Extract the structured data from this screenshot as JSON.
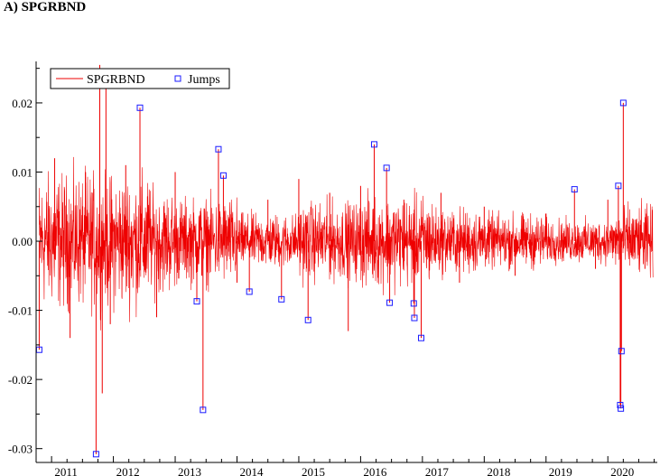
{
  "panel_label": "A) SPGRBND",
  "chart_data": {
    "type": "line",
    "title": "",
    "xlabel": "",
    "ylabel": "",
    "xlim": [
      2010.75,
      2020.8
    ],
    "ylim": [
      -0.032,
      0.026
    ],
    "x_ticks": [
      2011,
      2012,
      2013,
      2014,
      2015,
      2016,
      2017,
      2018,
      2019,
      2020
    ],
    "x_tick_labels": [
      "2011",
      "2012",
      "2013",
      "2014",
      "2015",
      "2016",
      "2017",
      "2018",
      "2019",
      "2020"
    ],
    "y_ticks": [
      -0.03,
      -0.02,
      -0.01,
      0.0,
      0.01,
      0.02
    ],
    "y_tick_labels": [
      "-0.03",
      "-0.02",
      "-0.01",
      "0.00",
      "0.01",
      "0.02"
    ],
    "grid": false,
    "legend": {
      "position": "top-left",
      "entries": [
        "SPGRBND",
        "Jumps"
      ]
    },
    "colors": {
      "series": "#ee0000",
      "jumps": "#1a1aff",
      "axis": "#000000"
    },
    "series": [
      {
        "name": "SPGRBND",
        "style": "line",
        "x": [
          2010.8,
          2011.05,
          2011.3,
          2011.55,
          2011.72,
          2011.78,
          2011.82,
          2011.88,
          2011.95,
          2012.2,
          2012.43,
          2012.7,
          2013.0,
          2013.35,
          2013.45,
          2013.7,
          2013.78,
          2014.0,
          2014.2,
          2014.5,
          2014.72,
          2015.0,
          2015.15,
          2015.5,
          2015.8,
          2016.0,
          2016.22,
          2016.42,
          2016.47,
          2016.7,
          2016.86,
          2016.87,
          2016.98,
          2017.3,
          2017.6,
          2018.0,
          2018.5,
          2019.0,
          2019.46,
          2019.8,
          2020.0,
          2020.17,
          2020.2,
          2020.21,
          2020.22,
          2020.25,
          2020.6
        ],
        "values": [
          -0.0157,
          0.012,
          -0.014,
          0.01,
          -0.0308,
          0.0255,
          -0.022,
          0.025,
          -0.012,
          0.011,
          0.0193,
          -0.011,
          0.01,
          -0.0087,
          -0.0244,
          0.0133,
          0.0095,
          -0.006,
          -0.0073,
          0.006,
          -0.0084,
          0.009,
          -0.0114,
          0.007,
          -0.013,
          0.008,
          0.014,
          0.0106,
          -0.0089,
          0.006,
          -0.009,
          -0.0111,
          -0.014,
          0.007,
          -0.006,
          0.005,
          -0.005,
          0.004,
          0.0075,
          -0.004,
          0.006,
          0.008,
          -0.0237,
          -0.0242,
          -0.0159,
          0.02,
          -0.004
        ]
      },
      {
        "name": "Jumps",
        "style": "markers",
        "x": [
          2010.8,
          2011.72,
          2012.43,
          2013.35,
          2013.45,
          2013.7,
          2013.78,
          2014.2,
          2014.72,
          2015.15,
          2016.22,
          2016.42,
          2016.47,
          2016.86,
          2016.87,
          2016.98,
          2019.46,
          2020.17,
          2020.2,
          2020.21,
          2020.22,
          2020.25
        ],
        "values": [
          -0.0157,
          -0.0308,
          0.0193,
          -0.0087,
          -0.0244,
          0.0133,
          0.0095,
          -0.0073,
          -0.0084,
          -0.0114,
          0.014,
          0.0106,
          -0.0089,
          -0.009,
          -0.0111,
          -0.014,
          0.0075,
          0.008,
          -0.0237,
          -0.0242,
          -0.0159,
          0.02
        ]
      }
    ]
  }
}
